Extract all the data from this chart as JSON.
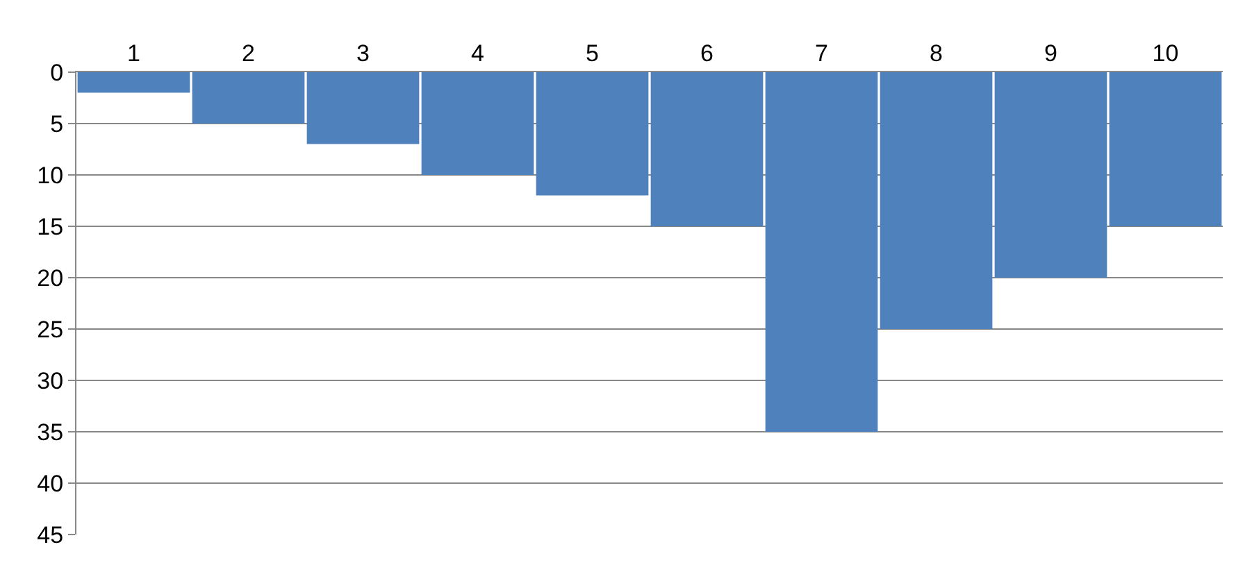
{
  "chart_data": {
    "type": "bar",
    "categories": [
      "1",
      "2",
      "3",
      "4",
      "5",
      "6",
      "7",
      "8",
      "9",
      "10"
    ],
    "values": [
      2,
      5,
      7,
      10,
      12,
      15,
      35,
      25,
      20,
      15
    ],
    "color": "#4f81bd",
    "ylim": [
      45,
      0
    ],
    "yticks": [
      0,
      5,
      10,
      15,
      20,
      25,
      30,
      35,
      40,
      45
    ],
    "grid": "y"
  }
}
